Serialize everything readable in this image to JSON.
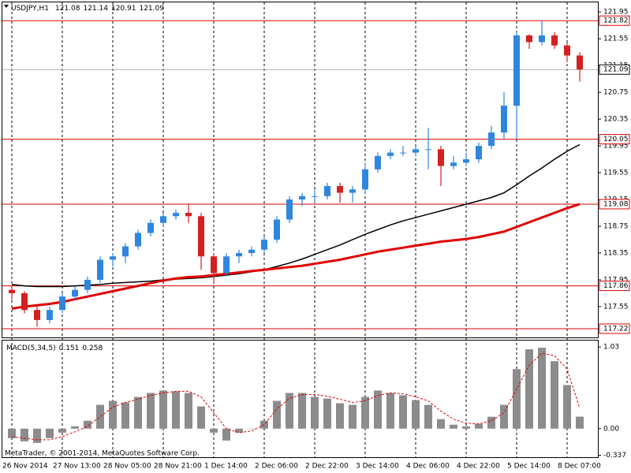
{
  "header": {
    "symbol": "USDJPY,H1",
    "ohlc": [
      121.08,
      121.14,
      120.91,
      121.09
    ]
  },
  "footer": {
    "copyright": "MetaTrader, © 2001-2014, MetaQuotes Software Corp."
  },
  "chart_data": [
    {
      "type": "candlestick",
      "categories": [
        "26 Nov 2014",
        null,
        null,
        null,
        "27 Nov 13:00",
        null,
        null,
        null,
        "28 Nov 05:00",
        null,
        null,
        null,
        "28 Nov 21:00",
        null,
        null,
        null,
        "1 Dec 14:00",
        null,
        null,
        null,
        "2 Dec 06:00",
        null,
        null,
        null,
        "2 Dec 22:00",
        null,
        null,
        null,
        "3 Dec 14:00",
        null,
        null,
        null,
        "4 Dec 06:00",
        null,
        null,
        null,
        "4 Dec 22:00",
        null,
        null,
        null,
        "5 Dec 14:00",
        null,
        null,
        null,
        "8 Dec 07:00",
        null
      ],
      "open": [
        117.8,
        117.75,
        117.5,
        117.35,
        117.5,
        117.7,
        117.8,
        117.95,
        118.25,
        118.3,
        118.45,
        118.65,
        118.8,
        118.9,
        118.95,
        118.9,
        118.3,
        118.05,
        118.3,
        118.35,
        118.4,
        118.55,
        118.85,
        119.15,
        119.2,
        119.2,
        119.35,
        119.25,
        119.3,
        119.6,
        119.8,
        119.85,
        119.85,
        119.9,
        119.9,
        119.65,
        119.7,
        119.75,
        119.95,
        120.15,
        120.55,
        121.6,
        121.5,
        121.6,
        121.45,
        121.3
      ],
      "high": [
        117.85,
        117.78,
        117.55,
        117.55,
        117.75,
        117.85,
        118.0,
        118.3,
        118.35,
        118.5,
        118.7,
        118.85,
        118.95,
        119.0,
        119.08,
        118.95,
        118.35,
        118.35,
        118.4,
        118.45,
        118.6,
        118.9,
        119.2,
        119.25,
        119.3,
        119.4,
        119.4,
        119.35,
        119.7,
        119.85,
        119.9,
        119.95,
        119.95,
        120.22,
        119.95,
        119.8,
        119.85,
        120.0,
        120.25,
        120.75,
        121.65,
        121.62,
        121.82,
        121.65,
        121.5,
        121.35
      ],
      "low": [
        117.65,
        117.45,
        117.25,
        117.3,
        117.45,
        117.65,
        117.75,
        117.9,
        118.15,
        118.2,
        118.4,
        118.6,
        118.75,
        118.85,
        118.8,
        118.1,
        117.9,
        118.0,
        118.2,
        118.3,
        118.35,
        118.5,
        118.8,
        119.05,
        119.1,
        119.15,
        119.1,
        119.1,
        119.25,
        119.55,
        119.75,
        119.8,
        119.8,
        119.6,
        119.35,
        119.6,
        119.65,
        119.7,
        119.9,
        120.05,
        120.05,
        121.4,
        121.45,
        121.4,
        121.2,
        120.91
      ],
      "close": [
        117.75,
        117.5,
        117.35,
        117.5,
        117.7,
        117.8,
        117.95,
        118.25,
        118.3,
        118.45,
        118.65,
        118.8,
        118.9,
        118.95,
        118.9,
        118.3,
        118.05,
        118.3,
        118.35,
        118.4,
        118.55,
        118.85,
        119.15,
        119.2,
        119.2,
        119.35,
        119.25,
        119.3,
        119.6,
        119.8,
        119.85,
        119.85,
        119.9,
        119.9,
        119.65,
        119.7,
        119.75,
        119.95,
        120.15,
        120.55,
        121.6,
        121.5,
        121.6,
        121.45,
        121.3,
        121.09
      ],
      "up_color": "#2e86de",
      "down_color": "#d32020",
      "overlays": [
        {
          "color": "#000000",
          "values": [
            117.88,
            117.86,
            117.85,
            117.85,
            117.85,
            117.86,
            117.87,
            117.88,
            117.9,
            117.91,
            117.92,
            117.93,
            117.95,
            117.96,
            117.97,
            117.98,
            118.0,
            118.02,
            118.04,
            118.07,
            118.1,
            118.15,
            118.2,
            118.26,
            118.33,
            118.4,
            118.47,
            118.55,
            118.63,
            118.7,
            118.77,
            118.83,
            118.88,
            118.93,
            118.98,
            119.03,
            119.08,
            119.13,
            119.18,
            119.25,
            119.37,
            119.5,
            119.62,
            119.75,
            119.87,
            119.97
          ]
        },
        {
          "color": "#e00000",
          "values": [
            117.52,
            117.55,
            117.57,
            117.59,
            117.62,
            117.66,
            117.7,
            117.74,
            117.78,
            117.82,
            117.86,
            117.9,
            117.94,
            117.97,
            117.99,
            118.0,
            118.02,
            118.04,
            118.06,
            118.08,
            118.1,
            118.12,
            118.14,
            118.16,
            118.19,
            118.22,
            118.25,
            118.29,
            118.33,
            118.37,
            118.4,
            118.43,
            118.46,
            118.49,
            118.52,
            118.54,
            118.56,
            118.59,
            118.63,
            118.67,
            118.74,
            118.81,
            118.88,
            118.95,
            119.02,
            119.08
          ]
        }
      ],
      "levels": [
        121.82,
        120.05,
        119.08,
        117.86,
        117.22
      ],
      "level_color": "#e00000",
      "bid": 121.09,
      "ylim": [
        117.09,
        122.07
      ],
      "yticks": [
        117.55,
        117.95,
        118.35,
        118.75,
        119.15,
        119.55,
        119.95,
        120.35,
        120.75,
        121.15,
        121.55,
        121.95
      ],
      "grid": true
    },
    {
      "type": "bar",
      "indicator": "MACD(5,34,5)",
      "color": "#8c8c8c",
      "values": [
        -0.12,
        -0.16,
        -0.18,
        -0.12,
        -0.05,
        0.03,
        0.1,
        0.3,
        0.35,
        0.33,
        0.4,
        0.45,
        0.48,
        0.47,
        0.45,
        0.28,
        -0.05,
        -0.15,
        -0.05,
        0.0,
        0.1,
        0.35,
        0.45,
        0.45,
        0.4,
        0.38,
        0.32,
        0.3,
        0.4,
        0.48,
        0.45,
        0.42,
        0.36,
        0.3,
        0.12,
        0.05,
        0.03,
        0.06,
        0.15,
        0.3,
        0.75,
        1.0,
        1.02,
        0.85,
        0.55,
        0.151
      ],
      "signal": {
        "color": "#e00000",
        "values": [
          -0.1,
          -0.12,
          -0.14,
          -0.14,
          -0.1,
          -0.04,
          0.03,
          0.15,
          0.27,
          0.33,
          0.37,
          0.42,
          0.45,
          0.47,
          0.47,
          0.4,
          0.2,
          0.0,
          -0.05,
          -0.03,
          0.05,
          0.25,
          0.38,
          0.43,
          0.43,
          0.41,
          0.37,
          0.33,
          0.35,
          0.42,
          0.45,
          0.44,
          0.4,
          0.35,
          0.22,
          0.12,
          0.07,
          0.06,
          0.1,
          0.2,
          0.5,
          0.8,
          0.95,
          0.92,
          0.75,
          0.258
        ]
      },
      "ylim": [
        -0.36,
        1.11
      ],
      "yticks": [
        -0.337,
        {
          "value": 0,
          "label": "0.00"
        },
        1.03
      ]
    }
  ]
}
